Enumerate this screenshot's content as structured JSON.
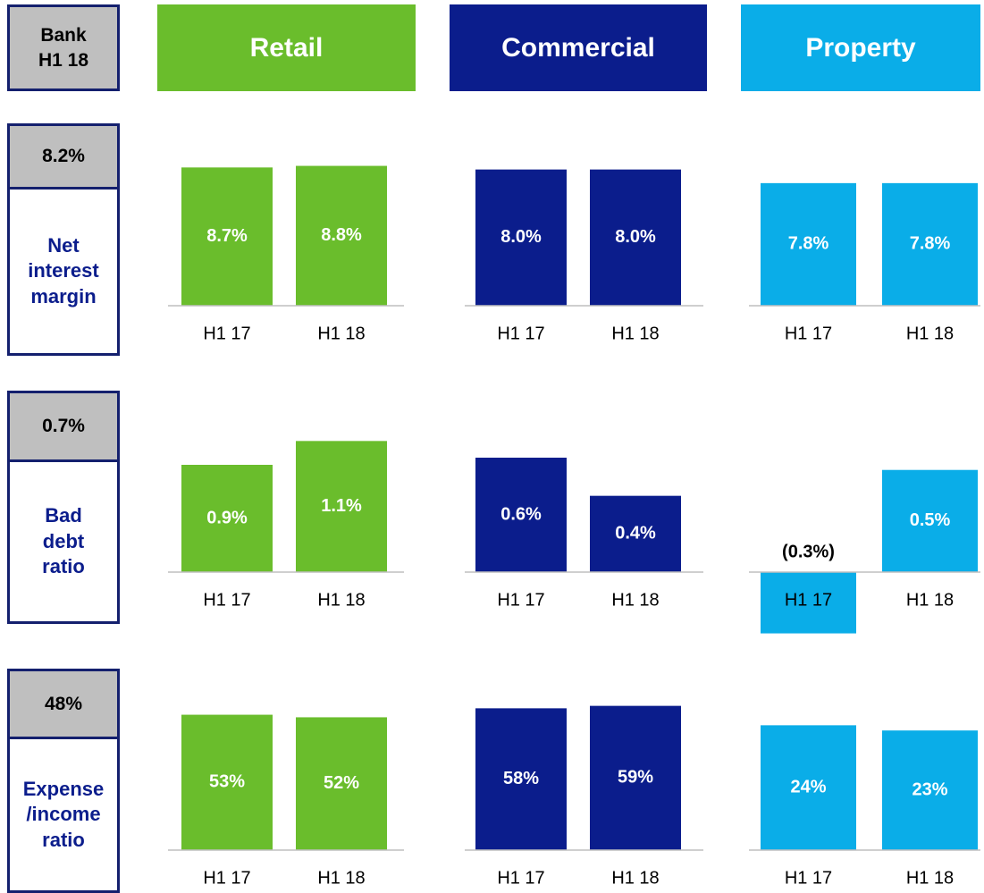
{
  "header": {
    "bank": "Bank H1 18",
    "segments": [
      "Retail",
      "Commercial",
      "Property"
    ],
    "colors": [
      "#6abd2c",
      "#0b1d8c",
      "#0aade8"
    ]
  },
  "metrics": [
    {
      "bank_value": "8.2%",
      "label": "Net interest margin"
    },
    {
      "bank_value": "0.7%",
      "label": "Bad debt ratio"
    },
    {
      "bank_value": "48%",
      "label": "Expense /income ratio"
    }
  ],
  "chart_data": [
    {
      "type": "bar",
      "categories": [
        "H1 17",
        "H1 18"
      ],
      "values": [
        8.7,
        8.8
      ],
      "value_labels": [
        "8.7%",
        "8.8%"
      ],
      "color": "#6abd2c",
      "ylim": [
        0,
        9
      ]
    },
    {
      "type": "bar",
      "categories": [
        "H1 17",
        "H1 18"
      ],
      "values": [
        8.0,
        8.0
      ],
      "value_labels": [
        "8.0%",
        "8.0%"
      ],
      "color": "#0b1d8c",
      "ylim": [
        0,
        8.4
      ]
    },
    {
      "type": "bar",
      "categories": [
        "H1 17",
        "H1 18"
      ],
      "values": [
        7.8,
        7.8
      ],
      "value_labels": [
        "7.8%",
        "7.8%"
      ],
      "color": "#0aade8",
      "ylim": [
        0,
        9.1
      ]
    },
    {
      "type": "bar",
      "categories": [
        "H1 17",
        "H1 18"
      ],
      "values": [
        0.9,
        1.1
      ],
      "value_labels": [
        "0.9%",
        "1.1%"
      ],
      "color": "#6abd2c",
      "ylim": [
        0,
        1.2
      ]
    },
    {
      "type": "bar",
      "categories": [
        "H1 17",
        "H1 18"
      ],
      "values": [
        0.6,
        0.4
      ],
      "value_labels": [
        "0.6%",
        "0.4%"
      ],
      "color": "#0b1d8c",
      "ylim": [
        0,
        0.75
      ]
    },
    {
      "type": "bar",
      "categories": [
        "H1 17",
        "H1 18"
      ],
      "values": [
        -0.3,
        0.5
      ],
      "value_labels": [
        "(0.3%)",
        "0.5%"
      ],
      "color": "#0aade8",
      "ylim": [
        -0.35,
        0.7
      ]
    },
    {
      "type": "bar",
      "categories": [
        "H1 17",
        "H1 18"
      ],
      "values": [
        53,
        52
      ],
      "value_labels": [
        "53%",
        "52%"
      ],
      "color": "#6abd2c",
      "ylim": [
        0,
        56
      ]
    },
    {
      "type": "bar",
      "categories": [
        "H1 17",
        "H1 18"
      ],
      "values": [
        58,
        59
      ],
      "value_labels": [
        "58%",
        "59%"
      ],
      "color": "#0b1d8c",
      "ylim": [
        0,
        58.5
      ]
    },
    {
      "type": "bar",
      "categories": [
        "H1 17",
        "H1 18"
      ],
      "values": [
        24,
        23
      ],
      "value_labels": [
        "24%",
        "23%"
      ],
      "color": "#0aade8",
      "ylim": [
        0,
        27.5
      ]
    }
  ]
}
